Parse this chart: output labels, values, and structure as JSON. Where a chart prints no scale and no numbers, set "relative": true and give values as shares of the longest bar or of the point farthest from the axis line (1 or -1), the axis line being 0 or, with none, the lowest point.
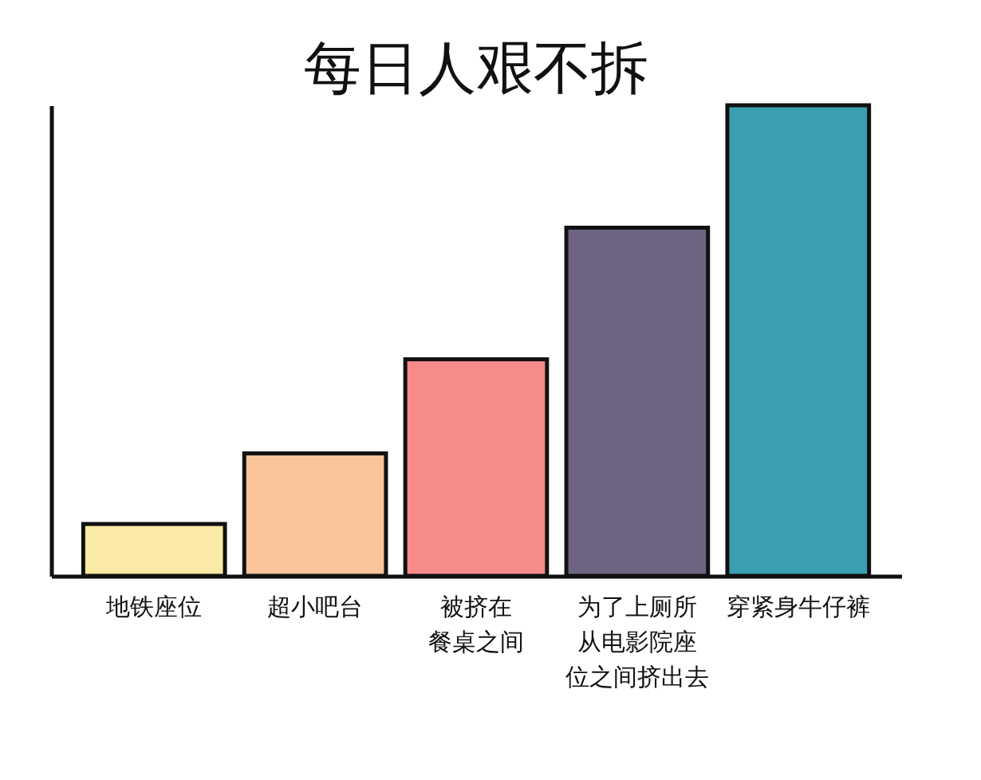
{
  "chart_data": {
    "type": "bar",
    "title": "每日人艰不拆",
    "relative": true,
    "categories": [
      "地铁座位",
      "超小吧台",
      "被挤在餐桌之间",
      "为了上厕所从电影院座位之间挤出去",
      "穿紧身牛仔裤"
    ],
    "values": [
      0.11,
      0.26,
      0.46,
      0.74,
      1
    ],
    "colors": [
      "#fbeaa5",
      "#f9c49a",
      "#f68b8a",
      "#6e6482",
      "#3a9fb0"
    ],
    "legend": false
  }
}
